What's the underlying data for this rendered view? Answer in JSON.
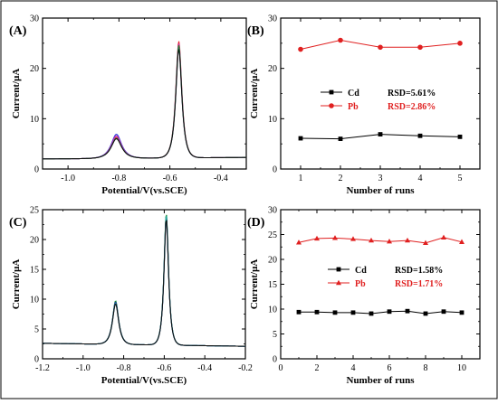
{
  "colors": {
    "axis": "#000000",
    "cd": "#000000",
    "pb": "#e02020",
    "trace_red": "#e8202a",
    "trace_blue": "#2a3fd8",
    "trace_magenta": "#c030c0",
    "trace_green": "#1a8f3a",
    "trace_black": "#111111",
    "trace_navy": "#1b2a7a",
    "trace_teal": "#2aa7a0",
    "border": "#000000"
  },
  "chart_data": [
    {
      "panel_label": "(A)",
      "type": "line",
      "xlabel": "Potential/V(vs.SCE)",
      "ylabel": "Current/μA",
      "xlim": [
        -1.1,
        -0.3
      ],
      "ylim": [
        0,
        30
      ],
      "xticks": [
        -1.0,
        -0.8,
        -0.6,
        -0.4
      ],
      "xtick_labels": [
        "-1.0",
        "-0.8",
        "-0.6",
        "-0.4"
      ],
      "yticks": [
        0,
        10,
        20,
        30
      ],
      "ytick_labels": [
        "0",
        "10",
        "20",
        "30"
      ],
      "baseline_left": 2.0,
      "baseline_right": 2.3,
      "peaks": [
        {
          "position": -0.81,
          "width": 0.033
        },
        {
          "position": -0.565,
          "width": 0.019
        }
      ],
      "series": [
        {
          "heights": [
            4.2,
            23.2
          ],
          "color_key": "trace_red"
        },
        {
          "heights": [
            4.8,
            22.0
          ],
          "color_key": "trace_blue"
        },
        {
          "heights": [
            4.5,
            22.7
          ],
          "color_key": "trace_magenta"
        },
        {
          "heights": [
            4.0,
            22.4
          ],
          "color_key": "trace_green"
        },
        {
          "heights": [
            3.9,
            21.6
          ],
          "color_key": "trace_black"
        }
      ]
    },
    {
      "panel_label": "(B)",
      "type": "line",
      "xlabel": "Number of runs",
      "ylabel": "Current/μA",
      "xlim": [
        0.5,
        5.5
      ],
      "ylim": [
        0,
        30
      ],
      "xticks": [
        1,
        2,
        3,
        4,
        5
      ],
      "xtick_labels": [
        "1",
        "2",
        "3",
        "4",
        "5"
      ],
      "yticks": [
        0,
        10,
        20,
        30
      ],
      "ytick_labels": [
        "0",
        "10",
        "20",
        "30"
      ],
      "legend_position": "center-left",
      "series": [
        {
          "name": "Cd",
          "rsd": "RSD=5.61%",
          "marker": "square",
          "color_key": "cd",
          "x": [
            1,
            2,
            3,
            4,
            5
          ],
          "values": [
            6.1,
            6.0,
            6.9,
            6.6,
            6.4
          ]
        },
        {
          "name": "Pb",
          "rsd": "RSD=2.86%",
          "marker": "circle",
          "color_key": "pb",
          "x": [
            1,
            2,
            3,
            4,
            5
          ],
          "values": [
            23.8,
            25.6,
            24.2,
            24.2,
            25.0
          ]
        }
      ]
    },
    {
      "panel_label": "(C)",
      "type": "line",
      "xlabel": "Potential/V(vs.SCE)",
      "ylabel": "Current/μA",
      "xlim": [
        -1.2,
        -0.2
      ],
      "ylim": [
        0,
        25
      ],
      "xticks": [
        -1.2,
        -1.0,
        -0.8,
        -0.6,
        -0.4,
        -0.2
      ],
      "xtick_labels": [
        "-1.2",
        "-1.0",
        "-0.8",
        "-0.6",
        "-0.4",
        "-0.2"
      ],
      "yticks": [
        0,
        5,
        10,
        15,
        20,
        25
      ],
      "ytick_labels": [
        "0",
        "5",
        "10",
        "15",
        "20",
        "25"
      ],
      "baseline_left": 2.6,
      "baseline_right": 2.1,
      "peaks": [
        {
          "position": -0.84,
          "width": 0.024
        },
        {
          "position": -0.59,
          "width": 0.018
        }
      ],
      "series": [
        {
          "heights": [
            7.3,
            22.1
          ],
          "color_key": "trace_green"
        },
        {
          "heights": [
            7.1,
            21.7
          ],
          "color_key": "trace_navy"
        },
        {
          "heights": [
            7.0,
            21.4
          ],
          "color_key": "trace_blue"
        },
        {
          "heights": [
            6.9,
            21.9
          ],
          "color_key": "trace_teal"
        },
        {
          "heights": [
            6.8,
            21.2
          ],
          "color_key": "trace_black"
        }
      ]
    },
    {
      "panel_label": "(D)",
      "type": "line",
      "xlabel": "Number of runs",
      "ylabel": "Current/μA",
      "xlim": [
        0,
        11
      ],
      "ylim": [
        0,
        30
      ],
      "xticks": [
        0,
        2,
        4,
        6,
        8,
        10
      ],
      "xtick_labels": [
        "0",
        "2",
        "4",
        "6",
        "8",
        "10"
      ],
      "yticks": [
        0,
        5,
        10,
        15,
        20,
        25,
        30
      ],
      "ytick_labels": [
        "0",
        "5",
        "10",
        "15",
        "20",
        "25",
        "30"
      ],
      "legend_position": "center",
      "series": [
        {
          "name": "Cd",
          "rsd": "RSD=1.58%",
          "marker": "square",
          "color_key": "cd",
          "x": [
            1,
            2,
            3,
            4,
            5,
            6,
            7,
            8,
            9,
            10
          ],
          "values": [
            9.4,
            9.4,
            9.3,
            9.3,
            9.1,
            9.5,
            9.6,
            9.1,
            9.5,
            9.3
          ]
        },
        {
          "name": "Pb",
          "rsd": "RSD=1.71%",
          "marker": "triangle",
          "color_key": "pb",
          "x": [
            1,
            2,
            3,
            4,
            5,
            6,
            7,
            8,
            9,
            10
          ],
          "values": [
            23.4,
            24.2,
            24.3,
            24.1,
            23.8,
            23.6,
            23.8,
            23.3,
            24.4,
            23.5
          ]
        }
      ]
    }
  ]
}
